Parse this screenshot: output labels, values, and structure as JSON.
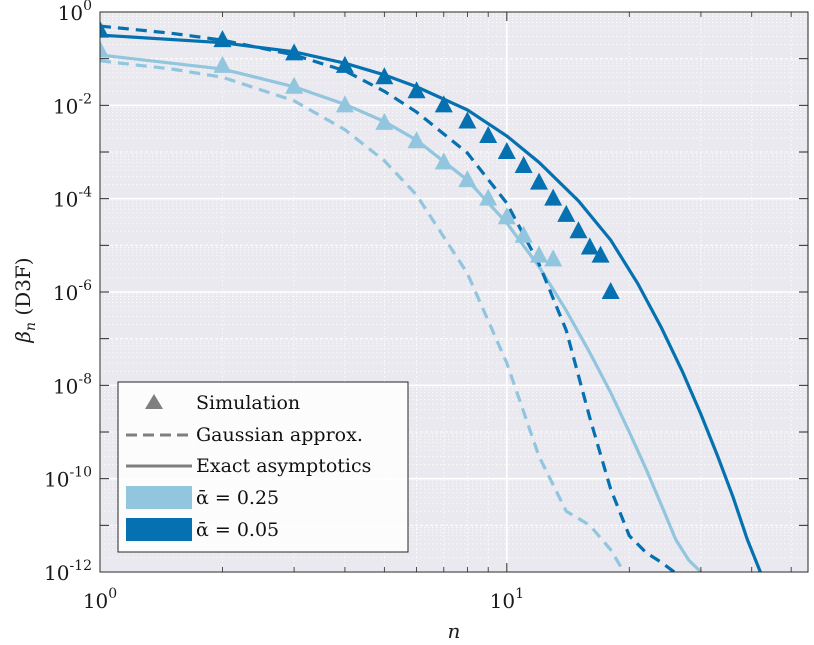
{
  "chart_data": {
    "type": "line",
    "title": "",
    "xlabel": "n",
    "ylabel_main": "β",
    "ylabel_sub": "n",
    "ylabel_suffix": " (D3F)",
    "xscale": "log",
    "yscale": "log",
    "xlim": [
      1,
      55
    ],
    "ylim": [
      1e-12,
      1
    ],
    "grid": true,
    "minor_grid": true,
    "legend_position": "bottom-left",
    "x_ticks": [
      {
        "base": "10",
        "exp": "0",
        "value": 1
      },
      {
        "base": "10",
        "exp": "1",
        "value": 10
      }
    ],
    "y_ticks": [
      {
        "base": "10",
        "exp": "0",
        "value": 1
      },
      {
        "base": "10",
        "exp": "-2",
        "value": 0.01
      },
      {
        "base": "10",
        "exp": "-4",
        "value": 0.0001
      },
      {
        "base": "10",
        "exp": "-6",
        "value": 1e-06
      },
      {
        "base": "10",
        "exp": "-8",
        "value": 1e-08
      },
      {
        "base": "10",
        "exp": "-10",
        "value": 1e-10
      },
      {
        "base": "10",
        "exp": "-12",
        "value": 1e-12
      }
    ],
    "legend": [
      {
        "label": "Simulation",
        "kind": "triangle",
        "color": "#7f7f7f"
      },
      {
        "label": "Gaussian approx.",
        "kind": "dashed",
        "color": "#7f7f7f"
      },
      {
        "label": "Exact asymptotics",
        "kind": "solid",
        "color": "#7f7f7f"
      },
      {
        "label": "ᾱ = 0.25",
        "kind": "patch",
        "color": "#92c5de"
      },
      {
        "label": "ᾱ = 0.05",
        "kind": "patch",
        "color": "#0571b0"
      }
    ],
    "series": [
      {
        "alpha": "0.25",
        "color": "#92c5de",
        "simulation": {
          "x": [
            1,
            2,
            3,
            4,
            5,
            6,
            7,
            8,
            9,
            10,
            11,
            12,
            13
          ],
          "y": [
            0.15,
            0.07,
            0.025,
            0.01,
            0.0042,
            0.0017,
            0.0006,
            0.00025,
            0.0001,
            4e-05,
            1.6e-05,
            6e-06,
            5e-06
          ]
        },
        "gaussian": {
          "x": [
            1,
            1.5,
            2,
            3,
            4,
            5,
            6,
            8,
            10,
            12,
            14,
            16,
            18,
            19.4
          ],
          "y": [
            0.09,
            0.06,
            0.04,
            0.0125,
            0.003,
            0.00065,
            0.00012,
            2.5e-06,
            3e-08,
            3e-10,
            2e-11,
            1e-11,
            3e-12,
            1e-12
          ]
        },
        "exact": {
          "x": [
            1,
            2,
            3,
            4,
            5,
            6,
            8,
            10,
            12,
            14,
            16,
            18,
            20,
            22,
            24,
            26,
            28,
            30
          ],
          "y": [
            0.12,
            0.06,
            0.025,
            0.0105,
            0.0045,
            0.0018,
            0.00025,
            3e-05,
            3.5e-06,
            4e-07,
            5e-08,
            7e-09,
            1e-09,
            1.6e-10,
            2.7e-11,
            5e-12,
            1.8e-12,
            1e-12
          ]
        }
      },
      {
        "alpha": "0.05",
        "color": "#0571b0",
        "simulation": {
          "x": [
            1,
            2,
            3,
            4,
            5,
            6,
            7,
            8,
            9,
            10,
            11,
            12,
            13,
            14,
            15,
            16,
            17,
            18
          ],
          "y": [
            0.4,
            0.25,
            0.13,
            0.07,
            0.04,
            0.02,
            0.01,
            0.0045,
            0.0022,
            0.001,
            0.0005,
            0.00022,
            0.0001,
            4.5e-05,
            2e-05,
            9e-06,
            6e-06,
            1e-06
          ]
        },
        "gaussian": {
          "x": [
            1,
            1.5,
            2,
            3,
            4,
            5,
            6,
            8,
            10,
            12,
            14,
            16,
            18,
            20,
            22,
            24,
            25.8
          ],
          "y": [
            0.5,
            0.35,
            0.25,
            0.12,
            0.055,
            0.02,
            0.0072,
            0.00095,
            8e-05,
            4e-06,
            1.5e-07,
            2e-09,
            6e-11,
            6e-12,
            2.6e-12,
            1.6e-12,
            1e-12
          ]
        },
        "exact": {
          "x": [
            1,
            2,
            3,
            4,
            5,
            6,
            8,
            10,
            12,
            15,
            18,
            21,
            24,
            27,
            30,
            33,
            36,
            39,
            42
          ],
          "y": [
            0.32,
            0.22,
            0.14,
            0.08,
            0.045,
            0.025,
            0.008,
            0.0022,
            0.0006,
            9e-05,
            1.3e-05,
            1.5e-06,
            1.7e-07,
            2e-08,
            2.4e-09,
            3e-10,
            4e-11,
            5e-12,
            1e-12
          ]
        }
      }
    ]
  }
}
